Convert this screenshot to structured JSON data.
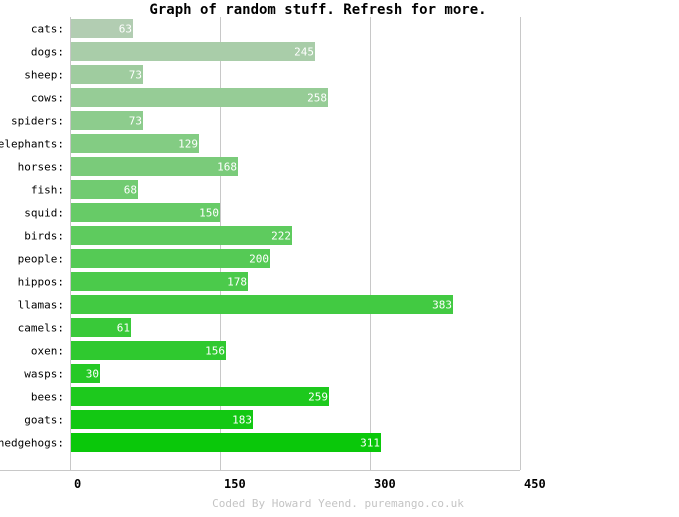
{
  "chart_data": {
    "type": "bar",
    "orientation": "horizontal",
    "title": "Graph of random stuff. Refresh for more.",
    "categories": [
      "cats:",
      "dogs:",
      "sheep:",
      "cows:",
      "spiders:",
      "elephants:",
      "horses:",
      "fish:",
      "squid:",
      "birds:",
      "people:",
      "hippos:",
      "llamas:",
      "camels:",
      "oxen:",
      "wasps:",
      "bees:",
      "goats:",
      "hedgehogs:"
    ],
    "values": [
      63,
      245,
      73,
      258,
      73,
      129,
      168,
      68,
      150,
      222,
      200,
      178,
      383,
      61,
      156,
      30,
      259,
      183,
      311
    ],
    "value_labels": [
      "63",
      "245",
      "73",
      "258",
      "73",
      "129",
      "168",
      "68",
      "150",
      "222",
      "200",
      "178",
      "383",
      "61",
      "156",
      "30",
      "259",
      "183",
      "311"
    ],
    "xlim": [
      0,
      450
    ],
    "xticks": [
      0,
      150,
      300,
      450
    ],
    "xtick_labels": [
      "0",
      "150",
      "300",
      "450"
    ],
    "grid": true,
    "bar_color_start": "#b2cdb2",
    "bar_color_end": "#0ac80a",
    "grid_color": "#c8c8c8",
    "footer": "Coded By Howard Yeend. puremango.co.uk"
  }
}
